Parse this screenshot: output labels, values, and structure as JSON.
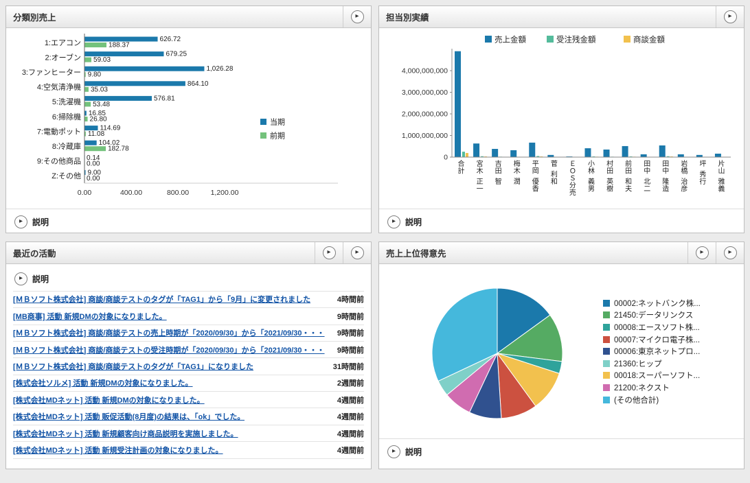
{
  "icons": {
    "chevron_right": "▶"
  },
  "panels": {
    "category_sales": {
      "title": "分類別売上",
      "description_label": "説明"
    },
    "rep_results": {
      "title": "担当別実績",
      "description_label": "説明"
    },
    "recent_activities": {
      "title": "最近の活動",
      "description_label": "説明",
      "items": [
        {
          "text": "[ＭＢソフト株式会社] 商談/商談テストのタグが「TAG1」から「9月」に変更されました",
          "time": "4時間前"
        },
        {
          "text": "[MB商事] 活動 新規DMの対象になりました。",
          "time": "9時間前"
        },
        {
          "text": "[ＭＢソフト株式会社] 商談/商談テストの売上時期が「2020/09/30」から「2021/09/30・・・",
          "time": "9時間前"
        },
        {
          "text": "[ＭＢソフト株式会社] 商談/商談テストの受注時期が「2020/09/30」から「2021/09/30・・・",
          "time": "9時間前"
        },
        {
          "text": "[ＭＢソフト株式会社] 商談/商談テストのタグが「TAG1」になりました",
          "time": "31時間前"
        },
        {
          "text": "[株式会社ソルメ] 活動 新規DMの対象になりました。",
          "time": "2週間前"
        },
        {
          "text": "[株式会社MDネット] 活動 新規DMの対象になりました。",
          "time": "4週間前"
        },
        {
          "text": "[株式会社MDネット] 活動 販促活動(8月度)の結果は、「ok」でした。",
          "time": "4週間前"
        },
        {
          "text": "[株式会社MDネット] 活動 新規顧客向け商品説明を実施しました。",
          "time": "4週間前"
        },
        {
          "text": "[株式会社MDネット] 活動 新規受注計画の対象になりました。",
          "time": "4週間前"
        }
      ]
    },
    "top_customers": {
      "title": "売上上位得意先",
      "description_label": "説明"
    }
  },
  "chart_data": [
    {
      "type": "bar",
      "orientation": "horizontal",
      "title": "分類別売上",
      "categories": [
        "1:エアコン",
        "2:オーブン",
        "3:ファンヒーター",
        "4:空気清浄機",
        "5:洗濯機",
        "6:掃除機",
        "7:電動ポット",
        "8:冷蔵庫",
        "9:その他商品",
        "Z:その他"
      ],
      "series": [
        {
          "name": "当期",
          "color": "#1b79ab",
          "values": [
            626.72,
            679.25,
            1026.28,
            864.1,
            576.81,
            16.85,
            114.69,
            104.02,
            0.14,
            9.0
          ]
        },
        {
          "name": "前期",
          "color": "#74c27c",
          "values": [
            188.37,
            59.03,
            9.8,
            35.03,
            53.48,
            26.8,
            11.08,
            182.78,
            0.0,
            0.0
          ]
        }
      ],
      "xlim": [
        0,
        1300
      ],
      "xticks": [
        0,
        400,
        800,
        1200
      ],
      "legend_position": "right",
      "grid": false
    },
    {
      "type": "bar",
      "orientation": "vertical",
      "title": "担当別実績",
      "categories": [
        "合計",
        "宮木 正一",
        "吉田 智",
        "梅木 潤",
        "平岡 優香",
        "菅 利和",
        "ＥＯＳ分売",
        "小林 義男",
        "村田 英樹",
        "前田 和夫",
        "田中 北二",
        "田中 隆造",
        "岩橋 治彦",
        "坪 秀行",
        "片山 雅義"
      ],
      "series": [
        {
          "name": "売上金額",
          "color": "#1b79ab",
          "values": [
            4900000000,
            630000000,
            380000000,
            320000000,
            670000000,
            100000000,
            30000000,
            410000000,
            350000000,
            510000000,
            130000000,
            540000000,
            130000000,
            100000000,
            160000000
          ]
        },
        {
          "name": "受注残金額",
          "color": "#54bb9b",
          "values": [
            250000000,
            40000000,
            20000000,
            10000000,
            50000000,
            0,
            0,
            30000000,
            20000000,
            30000000,
            10000000,
            40000000,
            10000000,
            0,
            10000000
          ]
        },
        {
          "name": "商談金額",
          "color": "#f2c14e",
          "values": [
            190000000,
            30000000,
            10000000,
            10000000,
            30000000,
            0,
            0,
            20000000,
            10000000,
            20000000,
            0,
            30000000,
            0,
            0,
            10000000
          ]
        }
      ],
      "ylim": [
        0,
        5100000000
      ],
      "yticks": [
        0,
        1000000000,
        2000000000,
        3000000000,
        4000000000
      ],
      "legend_position": "top",
      "grid": false
    },
    {
      "type": "pie",
      "title": "売上上位得意先",
      "labels": [
        "00002:ネットバンク株...",
        "21450:データリンクス",
        "00008:エースソフト株...",
        "00007:マイクロ電子株...",
        "00006:東京ネットプロ...",
        "21360:ヒップ",
        "00018:スーパーソフト...",
        "21200:ネクスト",
        "(その他合計)"
      ],
      "values": [
        15,
        12,
        3,
        9,
        8,
        4,
        10,
        7,
        32
      ],
      "colors": [
        "#1b79ab",
        "#55ab63",
        "#2fa39b",
        "#cc5140",
        "#30518f",
        "#7fd0c8",
        "#f2c14e",
        "#d06cb0",
        "#45b8dc"
      ],
      "draw_order": [
        0,
        1,
        2,
        6,
        3,
        4,
        7,
        5,
        8
      ],
      "legend_position": "right"
    }
  ]
}
